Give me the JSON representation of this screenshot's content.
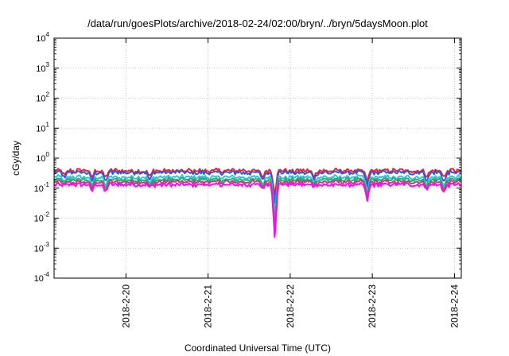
{
  "chart_data": {
    "type": "line",
    "title": "/data/run/goesPlots/archive/2018-02-24/02:00/bryn/../bryn/5daysMoon.plot",
    "xlabel": "Coordinated Universal Time (UTC)",
    "ylabel": "cGy/day",
    "yscale": "log",
    "ylim": [
      0.0001,
      10000
    ],
    "xlim": [
      "2018-02-19T03:00",
      "2018-02-24T02:00"
    ],
    "grid": true,
    "x_ticks": [
      "2018-2-20",
      "2018-2-21",
      "2018-2-22",
      "2018-2-23",
      "2018-2-24"
    ],
    "y_ticks": [
      {
        "base": "10",
        "exp": "4"
      },
      {
        "base": "10",
        "exp": "3"
      },
      {
        "base": "10",
        "exp": "2"
      },
      {
        "base": "10",
        "exp": "1"
      },
      {
        "base": "10",
        "exp": "0"
      },
      {
        "base": "10",
        "exp": "-1"
      },
      {
        "base": "10",
        "exp": "-2"
      },
      {
        "base": "10",
        "exp": "-3"
      },
      {
        "base": "10",
        "exp": "-4"
      }
    ],
    "series": [
      {
        "color": "#e8243a",
        "baseline": 0.38
      },
      {
        "color": "#3355dd",
        "baseline": 0.33
      },
      {
        "color": "#2bc8d8",
        "baseline": 0.23
      },
      {
        "color": "#22b06a",
        "baseline": 0.19
      },
      {
        "color": "#c04080",
        "baseline": 0.16
      },
      {
        "color": "#ee10ee",
        "baseline": 0.13
      }
    ],
    "dips": [
      {
        "x": "2018-02-19T06:00",
        "min": 0.12
      },
      {
        "x": "2018-02-19T14:00",
        "min": 0.08
      },
      {
        "x": "2018-02-19T18:00",
        "min": 0.07
      },
      {
        "x": "2018-02-20T07:00",
        "min": 0.1
      },
      {
        "x": "2018-02-21T16:00",
        "min": 0.1
      },
      {
        "x": "2018-02-21T19:30",
        "min": 0.0025
      },
      {
        "x": "2018-02-22T07:00",
        "min": 0.12
      },
      {
        "x": "2018-02-22T22:30",
        "min": 0.035
      },
      {
        "x": "2018-02-23T16:00",
        "min": 0.1
      },
      {
        "x": "2018-02-23T21:00",
        "min": 0.07
      }
    ]
  }
}
